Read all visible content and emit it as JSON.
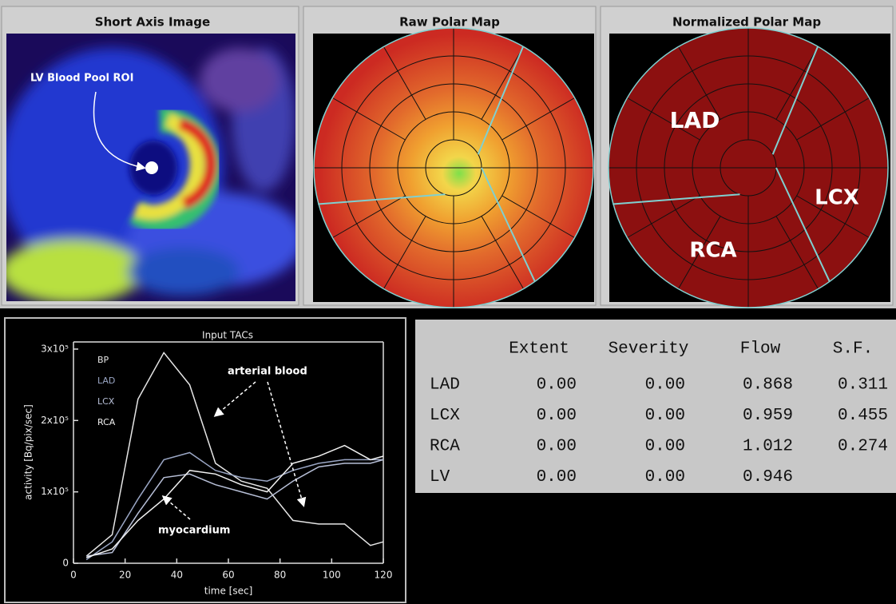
{
  "panels": [
    {
      "title": "Short Axis Image",
      "annotation": "LV Blood Pool ROI"
    },
    {
      "title": "Raw Polar Map"
    },
    {
      "title": "Normalized Polar Map",
      "labels": [
        "LAD",
        "LCX",
        "RCA"
      ]
    }
  ],
  "chart_data": {
    "type": "line",
    "title": "Input TACs",
    "x_label": "time [sec]",
    "y_label": "activity [Bq/pix/sec]",
    "x": [
      5,
      15,
      25,
      35,
      45,
      55,
      65,
      75,
      85,
      95,
      105,
      115,
      120
    ],
    "series": [
      {
        "name": "BP",
        "color": "#e6e6e6",
        "values": [
          10000,
          40000,
          230000,
          295000,
          250000,
          140000,
          115000,
          105000,
          60000,
          55000,
          55000,
          25000,
          30000
        ]
      },
      {
        "name": "LAD",
        "color": "#9aa6c4",
        "values": [
          5000,
          30000,
          90000,
          145000,
          155000,
          130000,
          120000,
          115000,
          130000,
          140000,
          145000,
          145000,
          145000
        ]
      },
      {
        "name": "LCX",
        "color": "#b8c0d8",
        "values": [
          10000,
          15000,
          70000,
          120000,
          125000,
          110000,
          100000,
          90000,
          115000,
          135000,
          140000,
          140000,
          145000
        ]
      },
      {
        "name": "RCA",
        "color": "#f2f2f2",
        "values": [
          8000,
          20000,
          60000,
          90000,
          130000,
          125000,
          110000,
          100000,
          140000,
          150000,
          165000,
          145000,
          150000
        ]
      }
    ],
    "xlim": [
      0,
      120
    ],
    "xticks": [
      0,
      20,
      40,
      60,
      80,
      100,
      120
    ],
    "ylim": [
      0,
      310000
    ],
    "yticks": [
      0,
      {
        "value": 100000,
        "label": "1x10⁵"
      },
      {
        "value": 200000,
        "label": "2x10⁵"
      },
      {
        "value": 300000,
        "label": "3x10⁵"
      }
    ],
    "annotations": [
      "arterial blood",
      "myocardium"
    ]
  },
  "table": {
    "header": [
      "Extent",
      "Severity",
      "Flow",
      "S.F."
    ],
    "rows": [
      {
        "label": "LAD",
        "cells": [
          "0.00",
          "0.00",
          "0.868",
          "0.311"
        ]
      },
      {
        "label": "LCX",
        "cells": [
          "0.00",
          "0.00",
          "0.959",
          "0.455"
        ]
      },
      {
        "label": "RCA",
        "cells": [
          "0.00",
          "0.00",
          "1.012",
          "0.274"
        ]
      },
      {
        "label": "LV",
        "cells": [
          "0.00",
          "0.00",
          "0.946"
        ]
      }
    ]
  }
}
